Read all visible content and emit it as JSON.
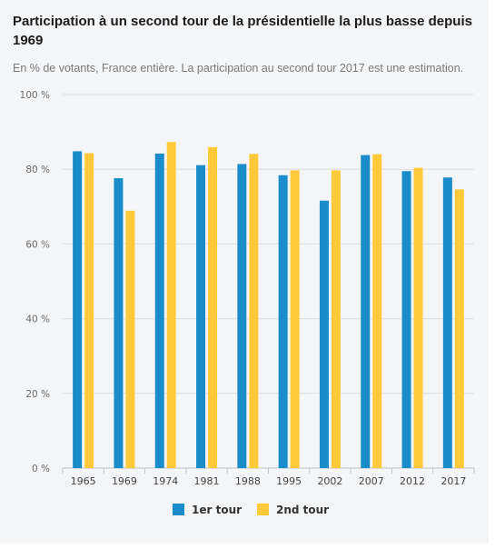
{
  "header": {
    "title": "Participation à un second tour de la présidentielle la plus basse depuis 1969",
    "subtitle": "En % de votants, France entière. La participation au second tour 2017 est une estimation."
  },
  "colors": {
    "series1": "#1a8cc9",
    "series2": "#ffc93a",
    "grid": "#dcdde0",
    "axis": "#bfc1c5"
  },
  "chart_data": {
    "type": "bar",
    "categories": [
      "1965",
      "1969",
      "1974",
      "1981",
      "1988",
      "1995",
      "2002",
      "2007",
      "2012",
      "2017"
    ],
    "series": [
      {
        "name": "1er tour",
        "values": [
          84.8,
          77.6,
          84.2,
          81.1,
          81.4,
          78.4,
          71.6,
          83.8,
          79.5,
          77.8
        ]
      },
      {
        "name": "2nd tour",
        "values": [
          84.3,
          68.9,
          87.3,
          85.9,
          84.1,
          79.7,
          79.7,
          84.0,
          80.4,
          74.6
        ]
      }
    ],
    "ylim": [
      0,
      100
    ],
    "yticks": [
      0,
      20,
      40,
      60,
      80,
      100
    ],
    "ytick_labels": [
      "0 %",
      "20 %",
      "40 %",
      "60 %",
      "80 %",
      "100 %"
    ],
    "legend_position": "bottom-center",
    "grid": true
  }
}
